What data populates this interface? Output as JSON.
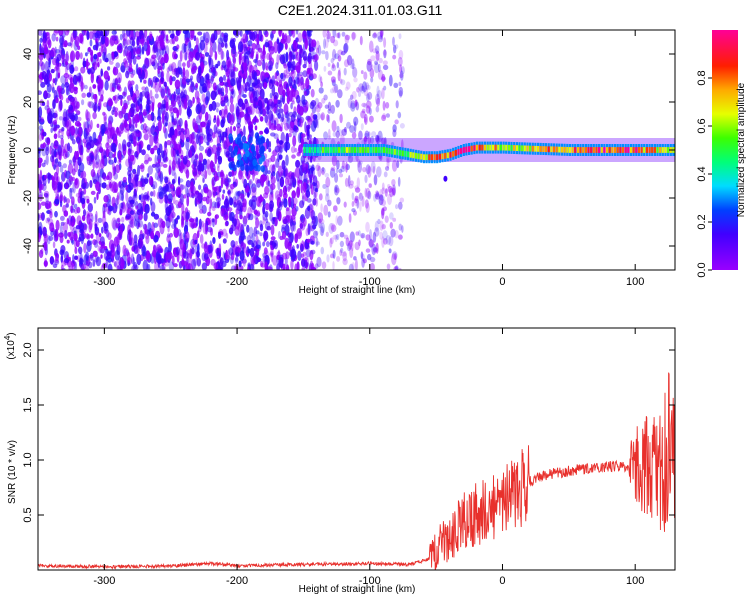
{
  "title": "C2E1.2024.311.01.03.G11",
  "chart_data": [
    {
      "type": "heatmap",
      "xlabel": "Height of straight line (km)",
      "ylabel": "Frequency (Hz)",
      "xlim": [
        -350,
        130
      ],
      "ylim": [
        -50,
        50
      ],
      "xticks": [
        -300,
        -200,
        -100,
        0,
        100
      ],
      "yticks": [
        -40,
        -20,
        0,
        20,
        40
      ],
      "noise_region": {
        "x_dense": [
          -350,
          -140
        ],
        "x_sparse": [
          -140,
          -75
        ],
        "intensity": 0.2
      },
      "signal_band": {
        "x": [
          -150,
          130
        ],
        "freq_center": 0,
        "freq_halfwidth": 3
      },
      "signal_path": [
        {
          "x": -150,
          "f": 0,
          "v": 0.45
        },
        {
          "x": -120,
          "f": 0,
          "v": 0.55
        },
        {
          "x": -90,
          "f": 0,
          "v": 0.5
        },
        {
          "x": -80,
          "f": -1,
          "v": 0.55
        },
        {
          "x": -60,
          "f": -3,
          "v": 0.6
        },
        {
          "x": -50,
          "f": -3,
          "v": 0.85
        },
        {
          "x": -40,
          "f": -2,
          "v": 0.8
        },
        {
          "x": -30,
          "f": 0,
          "v": 0.9
        },
        {
          "x": -20,
          "f": 1,
          "v": 0.85
        },
        {
          "x": 0,
          "f": 1,
          "v": 0.6
        },
        {
          "x": 50,
          "f": 0,
          "v": 0.8
        },
        {
          "x": 90,
          "f": 0,
          "v": 0.9
        },
        {
          "x": 130,
          "f": 0,
          "v": 0.6
        }
      ],
      "colorbar": {
        "label": "Normalized spectral amplitude",
        "range": [
          0,
          1
        ],
        "ticks": [
          0.0,
          0.2,
          0.4,
          0.6,
          0.8
        ]
      }
    },
    {
      "type": "line",
      "xlabel": "Height of straight line (km)",
      "ylabel": "SNR (10 * v/v)",
      "scale_label": "(x10",
      "scale_exp": "4",
      "xlim": [
        -350,
        130
      ],
      "ylim": [
        0,
        2.2
      ],
      "xticks": [
        -300,
        -200,
        -100,
        0,
        100
      ],
      "yticks": [
        0.5,
        1.0,
        1.5,
        2.0
      ],
      "series": [
        {
          "color": "#e8302c",
          "x": [
            -350,
            -300,
            -250,
            -220,
            -200,
            -150,
            -100,
            -70,
            -55,
            -50,
            -40,
            -30,
            -20,
            -10,
            0,
            10,
            20,
            30,
            40,
            50,
            60,
            70,
            80,
            90,
            100,
            110,
            120,
            125,
            128,
            130
          ],
          "values": [
            0.04,
            0.03,
            0.035,
            0.06,
            0.04,
            0.05,
            0.06,
            0.05,
            0.1,
            0.2,
            0.3,
            0.45,
            0.5,
            0.55,
            0.6,
            0.7,
            0.8,
            0.86,
            0.88,
            0.9,
            0.92,
            0.93,
            0.94,
            0.94,
            0.95,
            0.95,
            0.8,
            1.2,
            1.6,
            0.6
          ]
        }
      ]
    }
  ]
}
